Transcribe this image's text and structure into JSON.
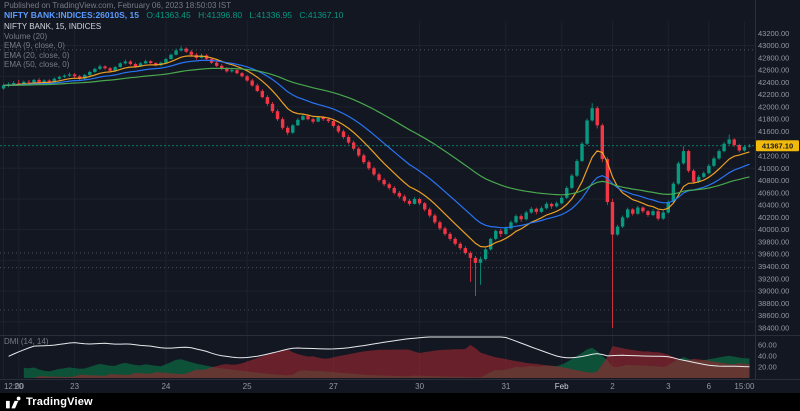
{
  "header": {
    "published_line": "Published on TradingView.com, February 06, 2023 18:50:03 IST",
    "symbol_line": "NIFTY BANK:INDICES:26010S, 15",
    "ohlc": [
      "O:41363.45",
      "H:41396.80",
      "L:41336.95",
      "C:41367.10"
    ]
  },
  "legend": {
    "main": [
      "NIFTY BANK, 15, INDICES",
      "Volume (20)",
      "EMA (9, close, 0)",
      "EMA (20, close, 0)",
      "EMA (50, close, 0)"
    ],
    "dmi": "DMI (14, 14)"
  },
  "footer": {
    "brand": "TradingView"
  },
  "colors": {
    "bg": "#131722",
    "grid": "#1e222d",
    "separator": "#2a2e39",
    "up": "#089981",
    "down": "#f23645",
    "axis_text": "#9598a1",
    "text_dim": "#787b86",
    "text_bright": "#d1d4dc",
    "dotted": "#787b86",
    "last_line": "#089981",
    "badge_bg": "#f2b90d",
    "badge_text": "#16191f",
    "adx": "#e8e9ed",
    "di_plus": "rgba(8,130,75,0.55)",
    "di_minus": "rgba(156,38,46,0.62)",
    "footer_bg": "#000000",
    "logo": "#ffffff"
  },
  "chart_data": {
    "type": "candlestick",
    "symbol": "NIFTY BANK",
    "interval": "15",
    "last_price": 41367.1,
    "price_axis": {
      "min": 38300,
      "max": 43400,
      "tick": 200,
      "label_min": 38400,
      "label_max": 43200
    },
    "grid_price_step": 500,
    "dotted_levels": [
      42930,
      39620,
      39380,
      38690
    ],
    "x_labels": [
      {
        "label": "12:00",
        "i": 0
      },
      {
        "label": "20",
        "i": 3
      },
      {
        "label": "23",
        "i": 14
      },
      {
        "label": "24",
        "i": 32
      },
      {
        "label": "25",
        "i": 48
      },
      {
        "label": "27",
        "i": 65
      },
      {
        "label": "30",
        "i": 82
      },
      {
        "label": "31",
        "i": 99
      },
      {
        "label": "Feb",
        "i": 110
      },
      {
        "label": "2",
        "i": 120
      },
      {
        "label": "3",
        "i": 131
      },
      {
        "label": "6",
        "i": 139
      },
      {
        "label": "15:00",
        "i": 146
      }
    ],
    "indicators": {
      "ema": [
        {
          "period": 9,
          "color": "#f5a623"
        },
        {
          "period": 20,
          "color": "#2979ff"
        },
        {
          "period": 50,
          "color": "#4caf50"
        }
      ],
      "dmi": {
        "len": 14,
        "ymax": 75,
        "axis": [
          20,
          40,
          60
        ]
      }
    },
    "ohlc": [
      [
        42300,
        42380,
        42280,
        42350
      ],
      [
        42350,
        42400,
        42320,
        42370
      ],
      [
        42370,
        42420,
        42340,
        42390
      ],
      [
        42390,
        42440,
        42350,
        42380
      ],
      [
        42380,
        42430,
        42360,
        42410
      ],
      [
        42410,
        42440,
        42370,
        42400
      ],
      [
        42400,
        42460,
        42380,
        42440
      ],
      [
        42440,
        42470,
        42360,
        42380
      ],
      [
        42380,
        42450,
        42360,
        42430
      ],
      [
        42430,
        42450,
        42380,
        42400
      ],
      [
        42400,
        42480,
        42390,
        42460
      ],
      [
        42460,
        42510,
        42440,
        42490
      ],
      [
        42490,
        42530,
        42470,
        42510
      ],
      [
        42510,
        42560,
        42490,
        42530
      ],
      [
        42530,
        42550,
        42480,
        42500
      ],
      [
        42500,
        42520,
        42440,
        42460
      ],
      [
        42460,
        42540,
        42450,
        42520
      ],
      [
        42520,
        42590,
        42500,
        42570
      ],
      [
        42570,
        42640,
        42550,
        42620
      ],
      [
        42620,
        42690,
        42600,
        42660
      ],
      [
        42660,
        42680,
        42610,
        42630
      ],
      [
        42630,
        42650,
        42570,
        42590
      ],
      [
        42590,
        42670,
        42580,
        42650
      ],
      [
        42650,
        42730,
        42640,
        42710
      ],
      [
        42710,
        42770,
        42690,
        42740
      ],
      [
        42740,
        42760,
        42680,
        42700
      ],
      [
        42700,
        42720,
        42640,
        42660
      ],
      [
        42660,
        42730,
        42650,
        42710
      ],
      [
        42710,
        42770,
        42700,
        42745
      ],
      [
        42745,
        42760,
        42700,
        42715
      ],
      [
        42715,
        42730,
        42660,
        42680
      ],
      [
        42680,
        42740,
        42660,
        42720
      ],
      [
        42720,
        42800,
        42710,
        42780
      ],
      [
        42780,
        42870,
        42770,
        42850
      ],
      [
        42850,
        42950,
        42840,
        42920
      ],
      [
        42920,
        42990,
        42900,
        42950
      ],
      [
        42950,
        42970,
        42880,
        42900
      ],
      [
        42900,
        42930,
        42830,
        42850
      ],
      [
        42850,
        42880,
        42770,
        42800
      ],
      [
        42800,
        42870,
        42790,
        42840
      ],
      [
        42840,
        42860,
        42760,
        42780
      ],
      [
        42780,
        42800,
        42700,
        42720
      ],
      [
        42720,
        42750,
        42650,
        42670
      ],
      [
        42670,
        42700,
        42600,
        42620
      ],
      [
        42620,
        42650,
        42560,
        42580
      ],
      [
        42580,
        42630,
        42560,
        42600
      ],
      [
        42600,
        42620,
        42530,
        42550
      ],
      [
        42550,
        42570,
        42480,
        42500
      ],
      [
        42500,
        42520,
        42410,
        42430
      ],
      [
        42430,
        42460,
        42330,
        42350
      ],
      [
        42350,
        42380,
        42240,
        42260
      ],
      [
        42260,
        42290,
        42140,
        42160
      ],
      [
        42160,
        42190,
        42020,
        42050
      ],
      [
        42050,
        42080,
        41900,
        41930
      ],
      [
        41930,
        41960,
        41770,
        41800
      ],
      [
        41800,
        41830,
        41630,
        41660
      ],
      [
        41660,
        41690,
        41540,
        41580
      ],
      [
        41580,
        41720,
        41560,
        41700
      ],
      [
        41700,
        41820,
        41690,
        41790
      ],
      [
        41790,
        41880,
        41780,
        41850
      ],
      [
        41850,
        41870,
        41780,
        41800
      ],
      [
        41800,
        41830,
        41730,
        41760
      ],
      [
        41760,
        41850,
        41750,
        41830
      ],
      [
        41830,
        41850,
        41770,
        41800
      ],
      [
        41800,
        41820,
        41740,
        41770
      ],
      [
        41770,
        41790,
        41660,
        41690
      ],
      [
        41690,
        41710,
        41570,
        41600
      ],
      [
        41600,
        41630,
        41480,
        41510
      ],
      [
        41510,
        41540,
        41390,
        41420
      ],
      [
        41420,
        41450,
        41290,
        41320
      ],
      [
        41320,
        41350,
        41180,
        41210
      ],
      [
        41210,
        41240,
        41070,
        41100
      ],
      [
        41100,
        41130,
        40970,
        41000
      ],
      [
        41000,
        41030,
        40870,
        40900
      ],
      [
        40900,
        40930,
        40780,
        40810
      ],
      [
        40810,
        40840,
        40710,
        40740
      ],
      [
        40740,
        40770,
        40650,
        40680
      ],
      [
        40680,
        40710,
        40570,
        40600
      ],
      [
        40600,
        40630,
        40510,
        40540
      ],
      [
        40540,
        40570,
        40440,
        40470
      ],
      [
        40470,
        40500,
        40390,
        40420
      ],
      [
        40420,
        40530,
        40410,
        40500
      ],
      [
        40500,
        40520,
        40400,
        40430
      ],
      [
        40430,
        40450,
        40300,
        40330
      ],
      [
        40330,
        40360,
        40200,
        40230
      ],
      [
        40230,
        40260,
        40090,
        40120
      ],
      [
        40120,
        40150,
        39990,
        40020
      ],
      [
        40020,
        40050,
        39900,
        39930
      ],
      [
        39930,
        39960,
        39820,
        39850
      ],
      [
        39850,
        39880,
        39740,
        39770
      ],
      [
        39770,
        39800,
        39670,
        39700
      ],
      [
        39700,
        39730,
        39590,
        39620
      ],
      [
        39620,
        39650,
        39150,
        39540
      ],
      [
        39540,
        39570,
        38920,
        39460
      ],
      [
        39460,
        39560,
        39100,
        39520
      ],
      [
        39520,
        39700,
        39500,
        39680
      ],
      [
        39680,
        39870,
        39660,
        39850
      ],
      [
        39850,
        40000,
        39830,
        39980
      ],
      [
        39980,
        40010,
        39880,
        39930
      ],
      [
        39930,
        40050,
        39910,
        40020
      ],
      [
        40020,
        40150,
        40000,
        40120
      ],
      [
        40120,
        40250,
        40100,
        40220
      ],
      [
        40220,
        40250,
        40130,
        40170
      ],
      [
        40170,
        40310,
        40150,
        40280
      ],
      [
        40280,
        40370,
        40260,
        40340
      ],
      [
        40340,
        40360,
        40250,
        40290
      ],
      [
        40290,
        40380,
        40270,
        40350
      ],
      [
        40350,
        40450,
        40330,
        40420
      ],
      [
        40420,
        40440,
        40340,
        40380
      ],
      [
        40380,
        40460,
        40360,
        40430
      ],
      [
        40430,
        40550,
        40410,
        40520
      ],
      [
        40520,
        40710,
        40500,
        40680
      ],
      [
        40680,
        40910,
        40660,
        40880
      ],
      [
        40880,
        41150,
        40860,
        41120
      ],
      [
        41120,
        41430,
        41100,
        41400
      ],
      [
        41400,
        41810,
        41380,
        41780
      ],
      [
        41780,
        42060,
        41760,
        41980
      ],
      [
        41980,
        42010,
        41650,
        41700
      ],
      [
        41700,
        41730,
        41100,
        41150
      ],
      [
        41150,
        41180,
        40400,
        40450
      ],
      [
        40450,
        40500,
        38400,
        39920
      ],
      [
        39920,
        40080,
        39900,
        40050
      ],
      [
        40050,
        40230,
        40030,
        40200
      ],
      [
        40200,
        40360,
        40180,
        40330
      ],
      [
        40330,
        40350,
        40230,
        40260
      ],
      [
        40260,
        40390,
        40240,
        40360
      ],
      [
        40360,
        40380,
        40270,
        40300
      ],
      [
        40300,
        40320,
        40210,
        40240
      ],
      [
        40240,
        40330,
        40220,
        40300
      ],
      [
        40300,
        40320,
        40150,
        40180
      ],
      [
        40180,
        40310,
        40160,
        40280
      ],
      [
        40280,
        40480,
        40260,
        40450
      ],
      [
        40450,
        40780,
        40430,
        40750
      ],
      [
        40750,
        41110,
        40730,
        41080
      ],
      [
        41080,
        41360,
        41060,
        41280
      ],
      [
        41280,
        41300,
        40930,
        40960
      ],
      [
        40960,
        40990,
        40750,
        40780
      ],
      [
        40780,
        40890,
        40760,
        40860
      ],
      [
        40860,
        40950,
        40840,
        40920
      ],
      [
        40920,
        41070,
        40900,
        41040
      ],
      [
        41040,
        41190,
        41020,
        41160
      ],
      [
        41160,
        41310,
        41140,
        41280
      ],
      [
        41280,
        41430,
        41260,
        41400
      ],
      [
        41400,
        41550,
        41380,
        41470
      ],
      [
        41470,
        41490,
        41350,
        41380
      ],
      [
        41380,
        41400,
        41260,
        41290
      ],
      [
        41290,
        41380,
        41270,
        41350
      ],
      [
        41363.45,
        41396.8,
        41336.95,
        41367.1
      ]
    ]
  }
}
